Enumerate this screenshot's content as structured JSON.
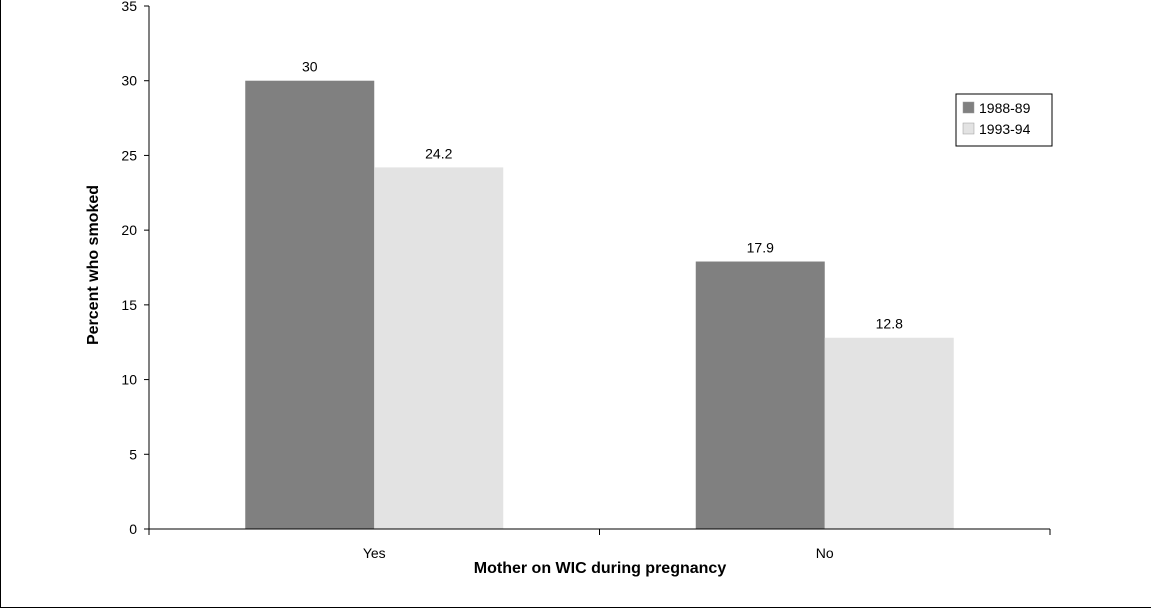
{
  "chart_data": {
    "type": "bar",
    "title": "",
    "xlabel": "Mother on WIC during pregnancy",
    "ylabel": "Percent who smoked",
    "categories": [
      "Yes",
      "No"
    ],
    "series": [
      {
        "name": "1988-89",
        "values": [
          30,
          17.9
        ],
        "color": "#808080"
      },
      {
        "name": "1993-94",
        "values": [
          24.2,
          12.8
        ],
        "color": "#e3e3e3"
      }
    ],
    "ylim": [
      0,
      35
    ],
    "yticks": [
      0,
      5,
      10,
      15,
      20,
      25,
      30,
      35
    ],
    "grid": false,
    "legend_position": "right"
  }
}
